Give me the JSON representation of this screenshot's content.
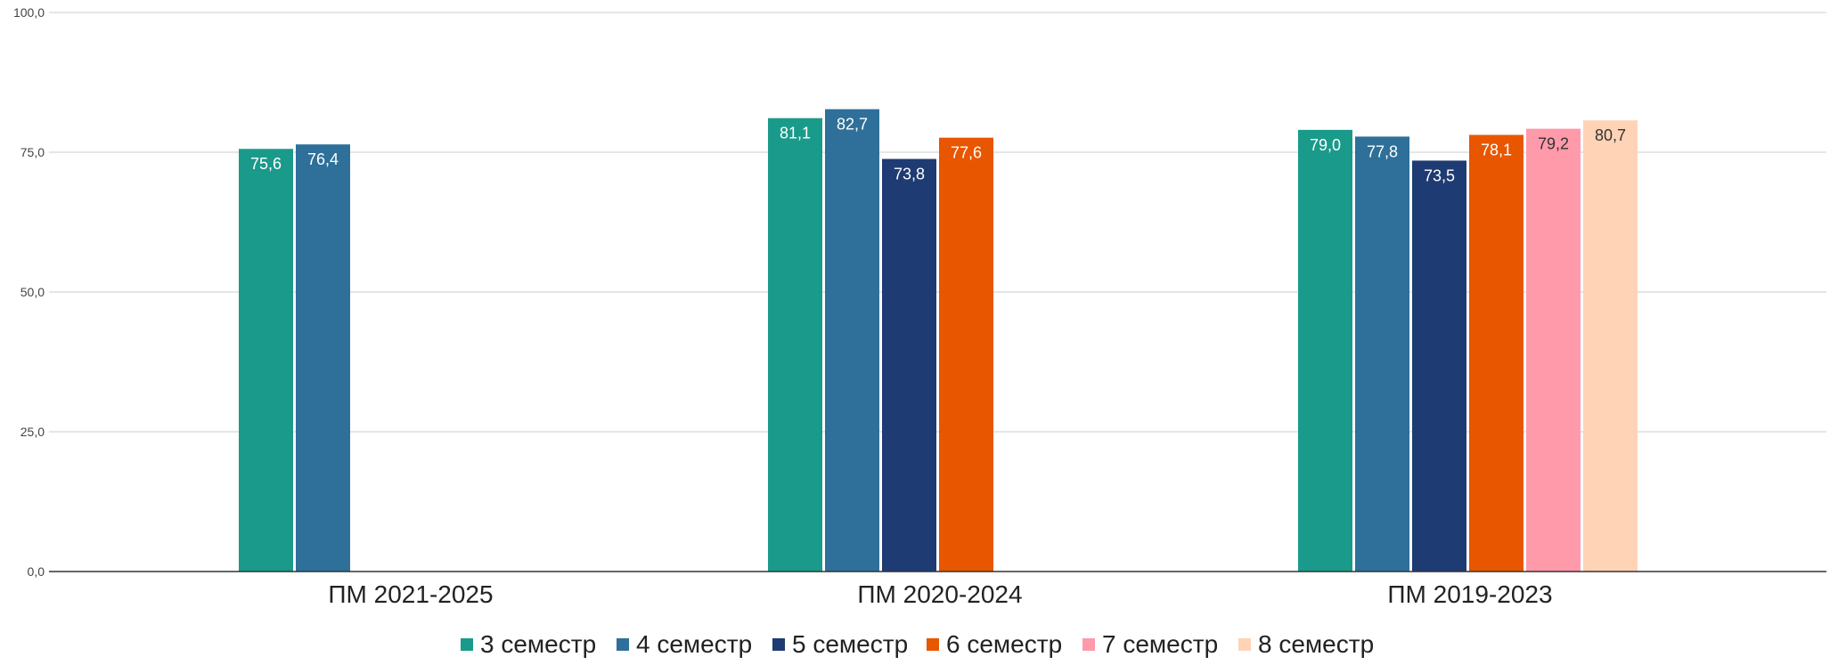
{
  "chart_data": {
    "type": "bar",
    "title": "",
    "xlabel": "",
    "ylabel": "",
    "ylim": [
      0,
      100
    ],
    "yticks": [
      0,
      25,
      50,
      75,
      100
    ],
    "ytick_labels": [
      "0,0",
      "25,0",
      "50,0",
      "75,0",
      "100,0"
    ],
    "grid": true,
    "legend_position": "bottom",
    "categories": [
      "ПМ 2021-2025",
      "ПМ 2020-2024",
      "ПМ 2019-2023"
    ],
    "series": [
      {
        "name": "3 семестр",
        "color": "#1a9a8a",
        "label_color": "#ffffff",
        "values": [
          75.6,
          81.1,
          79.0
        ],
        "labels": [
          "75,6",
          "81,1",
          "79,0"
        ]
      },
      {
        "name": "4 семестр",
        "color": "#2e7099",
        "label_color": "#ffffff",
        "values": [
          76.4,
          82.7,
          77.8
        ],
        "labels": [
          "76,4",
          "82,7",
          "77,8"
        ]
      },
      {
        "name": "5 семестр",
        "color": "#1f3b73",
        "label_color": "#ffffff",
        "values": [
          null,
          73.8,
          73.5
        ],
        "labels": [
          "",
          "73,8",
          "73,5"
        ]
      },
      {
        "name": "6 семестр",
        "color": "#e85600",
        "label_color": "#ffffff",
        "values": [
          null,
          77.6,
          78.1
        ],
        "labels": [
          "",
          "77,6",
          "78,1"
        ]
      },
      {
        "name": "7 семестр",
        "color": "#ff9aaa",
        "label_color": "#333333",
        "values": [
          null,
          null,
          79.2
        ],
        "labels": [
          "",
          "",
          "79,2"
        ]
      },
      {
        "name": "8 семестр",
        "color": "#ffd3b5",
        "label_color": "#333333",
        "values": [
          null,
          null,
          80.7
        ],
        "labels": [
          "",
          "",
          "80,7"
        ]
      }
    ]
  }
}
